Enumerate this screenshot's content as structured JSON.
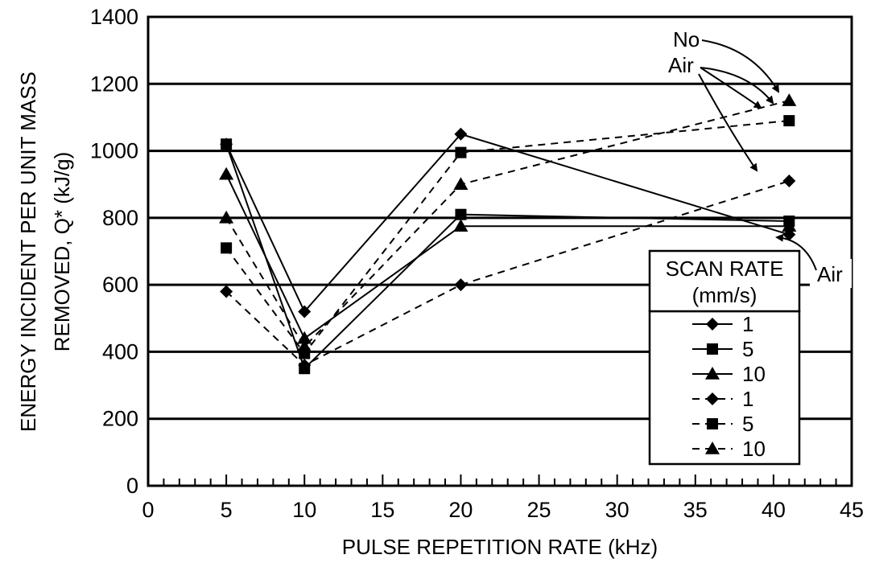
{
  "chart_data": {
    "type": "line",
    "xlabel": "PULSE REPETITION RATE (kHz)",
    "ylabel_line1": "ENERGY INCIDENT PER UNIT MASS",
    "ylabel_line2": "REMOVED, Q* (kJ/g)",
    "xlim": [
      0,
      45
    ],
    "ylim": [
      0,
      1400
    ],
    "x_ticks": [
      "0",
      "5",
      "10",
      "15",
      "20",
      "25",
      "30",
      "35",
      "40",
      "45"
    ],
    "y_ticks": [
      "0",
      "200",
      "400",
      "600",
      "800",
      "1000",
      "1200",
      "1400"
    ],
    "grid": "horizontal",
    "legend": {
      "title_line1": "SCAN RATE",
      "title_line2": "(mm/s)",
      "placement": "right"
    },
    "series": [
      {
        "name": "1",
        "line": "solid",
        "marker": "diamond",
        "x": [
          5,
          10,
          20,
          41
        ],
        "y": [
          1020,
          520,
          1050,
          750
        ]
      },
      {
        "name": "5",
        "line": "solid",
        "marker": "square",
        "x": [
          5,
          10,
          20,
          41
        ],
        "y": [
          1020,
          350,
          810,
          790
        ]
      },
      {
        "name": "10",
        "line": "solid",
        "marker": "triangle",
        "x": [
          5,
          10,
          20,
          41
        ],
        "y": [
          930,
          440,
          775,
          775
        ]
      },
      {
        "name": "1",
        "line": "dashed",
        "marker": "diamond",
        "x": [
          5,
          10,
          20,
          41
        ],
        "y": [
          580,
          360,
          600,
          910
        ]
      },
      {
        "name": "5",
        "line": "dashed",
        "marker": "square",
        "x": [
          5,
          10,
          20,
          41
        ],
        "y": [
          710,
          395,
          995,
          1090
        ]
      },
      {
        "name": "10",
        "line": "dashed",
        "marker": "triangle",
        "x": [
          5,
          10,
          20,
          41
        ],
        "y": [
          800,
          415,
          900,
          1150
        ]
      }
    ],
    "annotations": {
      "no_air_line1": "No",
      "no_air_line2": "Air",
      "air": "Air"
    }
  }
}
